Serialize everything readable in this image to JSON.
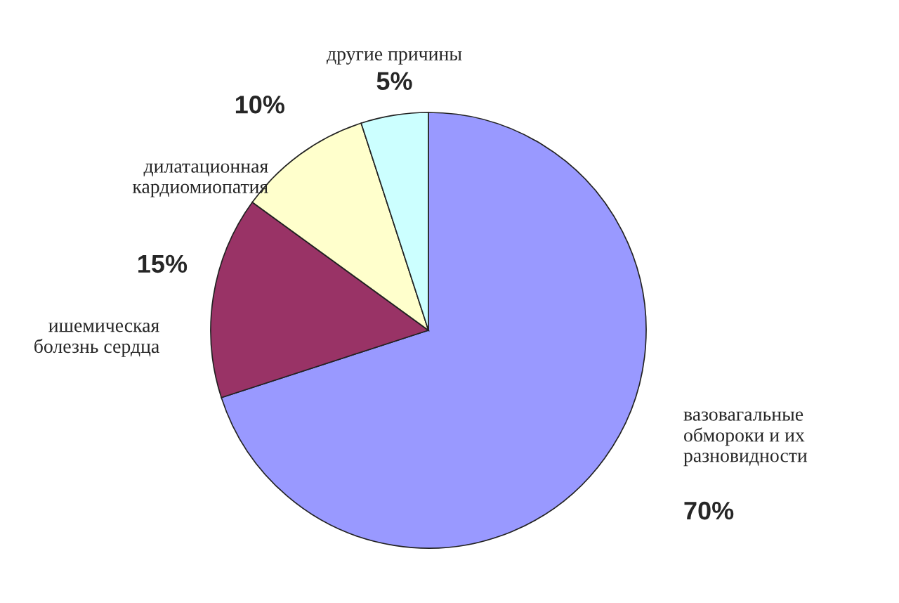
{
  "chart_data": {
    "type": "pie",
    "categories": [
      "вазовагальные\nобмороки и их\nразновидности",
      "ишемическая\nболезнь сердца",
      "дилатационная\nкардиомиопатия",
      "другие причины"
    ],
    "values": [
      70,
      15,
      10,
      5
    ],
    "colors": [
      "#9999ff",
      "#993366",
      "#ffffcc",
      "#ccffff"
    ],
    "value_labels": [
      "70%",
      "15%",
      "10%",
      "5%"
    ],
    "legend": false
  }
}
